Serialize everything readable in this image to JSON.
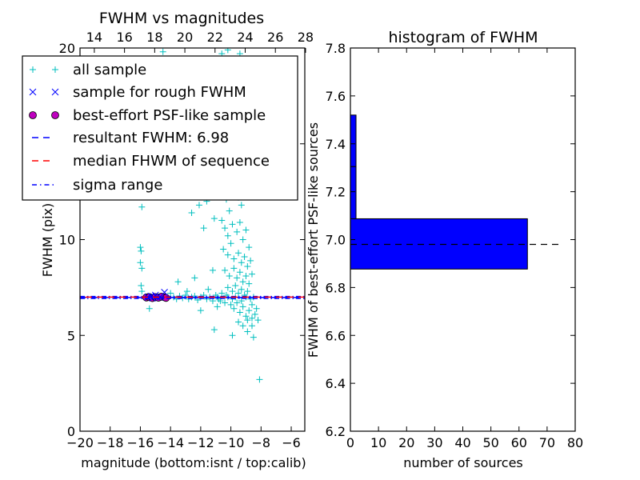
{
  "chart_data": [
    {
      "type": "scatter",
      "title": "FWHM vs magnitudes",
      "xlabel": "magnitude (bottom:isnt / top:calib)",
      "ylabel": "FWHM (pix)",
      "xlim": [
        -20,
        -5.1
      ],
      "ylim": [
        0,
        20
      ],
      "xticks": [
        "-20",
        "-18",
        "-16",
        "-14",
        "-12",
        "-10",
        "-8",
        "-6"
      ],
      "xtick_values": [
        -20,
        -18,
        -16,
        -14,
        -12,
        -10,
        -8,
        -6
      ],
      "yticks": [
        "0",
        "5",
        "10",
        "15",
        "20"
      ],
      "ytick_values": [
        0,
        5,
        10,
        15,
        20
      ],
      "top_xticks": [
        "14",
        "16",
        "18",
        "20",
        "22",
        "24",
        "26",
        "28"
      ],
      "top_xtick_values": [
        14,
        16,
        18,
        20,
        22,
        24,
        26,
        28
      ],
      "top_offset": 33.05,
      "legend": {
        "placement": "upper-left",
        "entries": [
          "all sample",
          "sample for rough FWHM",
          "best-effort PSF-like sample",
          "resultant FWHM: 6.98",
          "median FHWM of sequence",
          "sigma range"
        ]
      },
      "resultant_fwhm": 6.98,
      "median_fwhm": 7.0,
      "sigma_range": [
        6.93,
        7.03
      ],
      "series": [
        {
          "name": "all sample",
          "color": "#00bfbf",
          "points": [
            [
              -16,
              12.8
            ],
            [
              -15.9,
              11.7
            ],
            [
              -16,
              9.6
            ],
            [
              -15.95,
              9.4
            ],
            [
              -16,
              8.8
            ],
            [
              -15.9,
              8.5
            ],
            [
              -15.95,
              7.6
            ],
            [
              -15.9,
              7.3
            ],
            [
              -15.4,
              6.4
            ],
            [
              -14.5,
              19.8
            ],
            [
              -10.6,
              19.7
            ],
            [
              -10.2,
              19.9
            ],
            [
              -9.4,
              19.7
            ],
            [
              -12.6,
              11.4
            ],
            [
              -12.1,
              11.8
            ],
            [
              -11.1,
              11.1
            ],
            [
              -11.6,
              12.0
            ],
            [
              -11.8,
              10.6
            ],
            [
              -14,
              7.2
            ],
            [
              -13.8,
              7.0
            ],
            [
              -13.6,
              6.9
            ],
            [
              -13.4,
              7.05
            ],
            [
              -13.2,
              6.95
            ],
            [
              -13,
              7.1
            ],
            [
              -12.8,
              6.9
            ],
            [
              -12.6,
              7.0
            ],
            [
              -12.4,
              7.05
            ],
            [
              -12.2,
              6.85
            ],
            [
              -12,
              7.0
            ],
            [
              -11.8,
              7.1
            ],
            [
              -11.6,
              6.9
            ],
            [
              -11.4,
              7.0
            ],
            [
              -11.2,
              6.8
            ],
            [
              -11,
              7.1
            ],
            [
              -10.8,
              6.9
            ],
            [
              -10.6,
              7.2
            ],
            [
              -10.4,
              6.7
            ],
            [
              -10.2,
              7.0
            ],
            [
              -13.5,
              7.8
            ],
            [
              -12.4,
              8.0
            ],
            [
              -11.2,
              8.4
            ],
            [
              -11.1,
              5.3
            ],
            [
              -12,
              6.3
            ],
            [
              -10.9,
              6.5
            ],
            [
              -11.5,
              7.4
            ],
            [
              -12.9,
              7.3
            ],
            [
              -10.8,
              13.0
            ],
            [
              -10.5,
              12.6
            ],
            [
              -10.3,
              12.1
            ],
            [
              -10.1,
              11.5
            ],
            [
              -10,
              13.3
            ],
            [
              -9.7,
              12.8
            ],
            [
              -9.5,
              12.2
            ],
            [
              -9.3,
              11.8
            ],
            [
              -9.6,
              13.6
            ],
            [
              -10.6,
              11.0
            ],
            [
              -10.4,
              10.6
            ],
            [
              -10.2,
              10.2
            ],
            [
              -9.9,
              10.8
            ],
            [
              -9.6,
              10.4
            ],
            [
              -9.4,
              10.9
            ],
            [
              -9.2,
              10.0
            ],
            [
              -9,
              10.5
            ],
            [
              -8.8,
              9.6
            ],
            [
              -10.5,
              9.5
            ],
            [
              -10.2,
              9.2
            ],
            [
              -10,
              9.8
            ],
            [
              -9.8,
              9.0
            ],
            [
              -9.5,
              9.3
            ],
            [
              -9.3,
              8.8
            ],
            [
              -9.1,
              9.1
            ],
            [
              -8.9,
              8.6
            ],
            [
              -8.7,
              8.9
            ],
            [
              -10.4,
              8.4
            ],
            [
              -10.1,
              8.1
            ],
            [
              -9.8,
              8.5
            ],
            [
              -9.6,
              8.0
            ],
            [
              -9.4,
              8.3
            ],
            [
              -9.2,
              7.8
            ],
            [
              -9,
              8.1
            ],
            [
              -8.8,
              7.7
            ],
            [
              -8.6,
              8.2
            ],
            [
              -10.2,
              7.5
            ],
            [
              -9.9,
              7.3
            ],
            [
              -9.7,
              7.6
            ],
            [
              -9.5,
              7.2
            ],
            [
              -9.3,
              7.4
            ],
            [
              -9.1,
              7.1
            ],
            [
              -8.9,
              7.3
            ],
            [
              -8.7,
              6.9
            ],
            [
              -8.5,
              7.0
            ],
            [
              -10,
              6.6
            ],
            [
              -9.8,
              6.4
            ],
            [
              -9.6,
              6.7
            ],
            [
              -9.4,
              6.2
            ],
            [
              -9.2,
              6.5
            ],
            [
              -9,
              6.0
            ],
            [
              -8.8,
              6.3
            ],
            [
              -8.6,
              5.9
            ],
            [
              -8.4,
              6.1
            ],
            [
              -9.5,
              5.7
            ],
            [
              -9.2,
              5.5
            ],
            [
              -8.9,
              5.8
            ],
            [
              -8.6,
              5.5
            ],
            [
              -8.2,
              5.8
            ],
            [
              -8.5,
              4.9
            ],
            [
              -8.9,
              5.2
            ],
            [
              -9.9,
              5.0
            ],
            [
              -8.1,
              2.7
            ],
            [
              -10.9,
              7.0
            ],
            [
              -10.7,
              6.8
            ],
            [
              -10.3,
              7.1
            ],
            [
              -9.9,
              6.9
            ],
            [
              -9.7,
              7.0
            ],
            [
              -9.3,
              6.8
            ],
            [
              -9.0,
              7.0
            ],
            [
              -8.6,
              6.6
            ],
            [
              -8.3,
              6.4
            ]
          ]
        },
        {
          "name": "sample for rough FWHM",
          "color": "#0000ff",
          "points": [
            [
              -15.5,
              7.0
            ],
            [
              -15.3,
              7.05
            ],
            [
              -15.0,
              7.1
            ],
            [
              -14.7,
              7.0
            ],
            [
              -14.4,
              7.25
            ],
            [
              -15.2,
              6.95
            ],
            [
              -14.9,
              7.0
            ]
          ]
        },
        {
          "name": "best-effort PSF-like sample",
          "color": "#bf00bf",
          "points": [
            [
              -15.6,
              6.98
            ],
            [
              -15.4,
              7.0
            ],
            [
              -15.2,
              6.95
            ],
            [
              -15.0,
              7.0
            ],
            [
              -14.8,
              6.97
            ],
            [
              -14.6,
              7.02
            ],
            [
              -14.4,
              6.99
            ],
            [
              -14.3,
              6.96
            ]
          ]
        }
      ]
    },
    {
      "type": "bar",
      "orientation": "horizontal",
      "title": "histogram of FWHM",
      "xlabel": "number of sources",
      "ylabel": "FWHM of best-effort PSF-like sources",
      "xlim": [
        0,
        80
      ],
      "ylim": [
        6.2,
        7.8
      ],
      "xticks": [
        "0",
        "10",
        "20",
        "30",
        "40",
        "50",
        "60",
        "70",
        "80"
      ],
      "xtick_values": [
        0,
        10,
        20,
        30,
        40,
        50,
        60,
        70,
        80
      ],
      "yticks": [
        "6.2",
        "6.4",
        "6.6",
        "6.8",
        "7.0",
        "7.2",
        "7.4",
        "7.6",
        "7.8"
      ],
      "ytick_values": [
        6.2,
        6.4,
        6.6,
        6.8,
        7.0,
        7.2,
        7.4,
        7.6,
        7.8
      ],
      "bins": [
        [
          6.877,
          7.087
        ],
        [
          7.087,
          7.305
        ],
        [
          7.305,
          7.52
        ]
      ],
      "counts": [
        63,
        2,
        2
      ],
      "bar_color": "#0000ff",
      "reference_line": {
        "value": 6.98,
        "xrange": [
          0,
          75
        ]
      }
    }
  ]
}
